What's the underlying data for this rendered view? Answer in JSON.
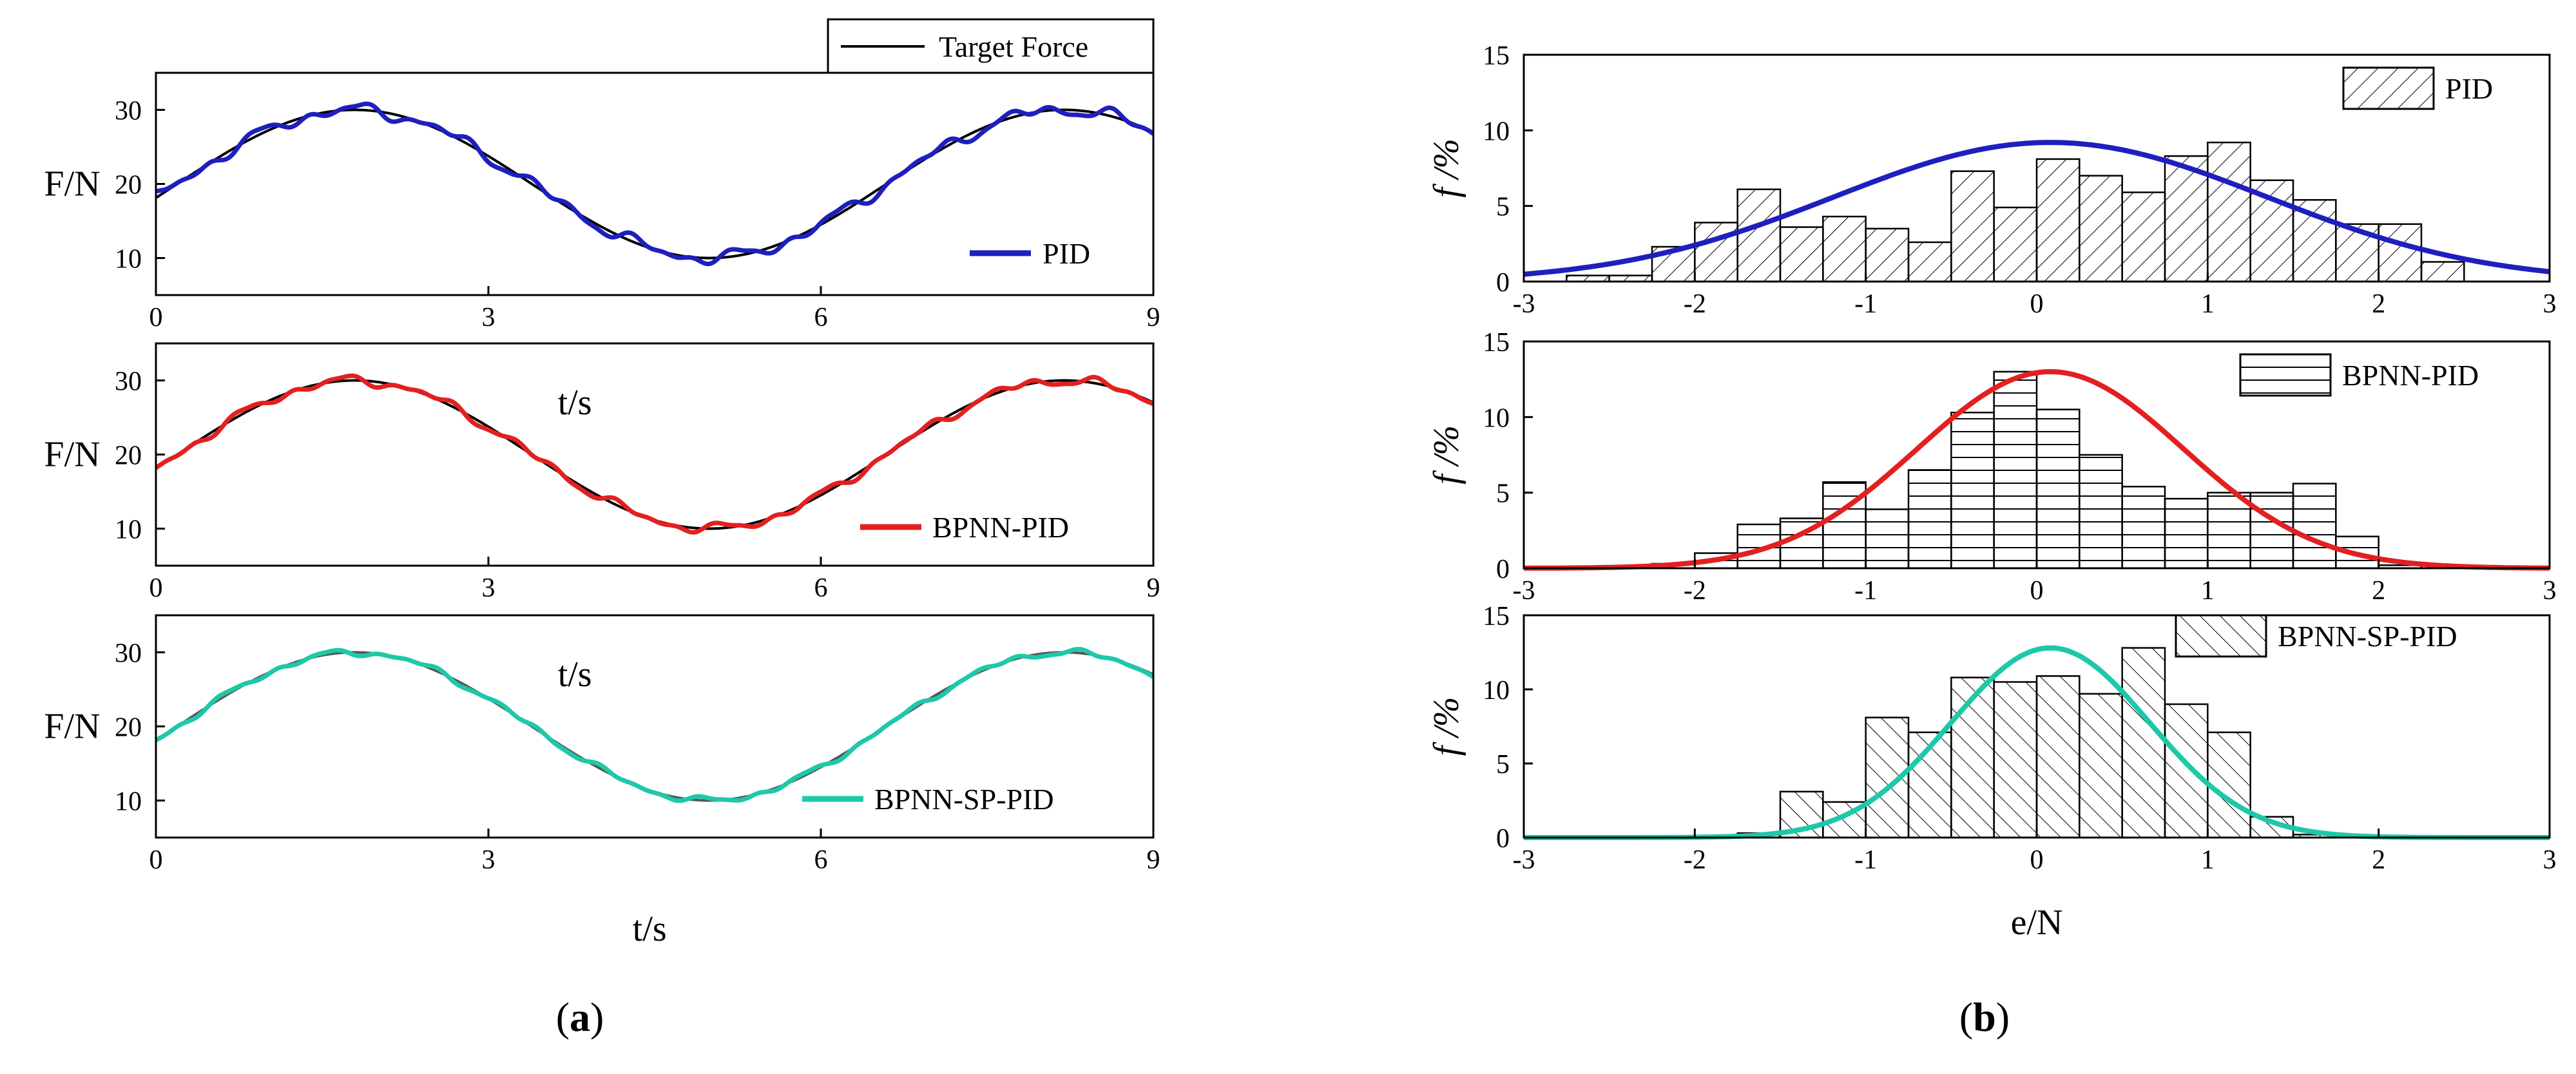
{
  "figure": {
    "caption_a_open": "(",
    "caption_a_letter": "a",
    "caption_a_close": ")",
    "caption_b_open": "(",
    "caption_b_letter": "b",
    "caption_b_close": ")"
  },
  "chart_data": [
    {
      "id": "a1",
      "type": "line",
      "title": "",
      "xlabel": "t/s",
      "ylabel": "F/N",
      "xlim": [
        0,
        9
      ],
      "ylim": [
        5,
        35
      ],
      "xticks": [
        0,
        3,
        6,
        9
      ],
      "yticks": [
        10,
        20,
        30
      ],
      "legend": [
        {
          "label": "Target Force",
          "color": "#000000"
        },
        {
          "label": "PID",
          "color": "#1f1fbf"
        }
      ],
      "series": [
        {
          "name": "Target Force",
          "color": "#000000",
          "formula": "20 + 10*sin(2*pi*(t/6.4) - 0.06*pi)"
        },
        {
          "name": "PID",
          "color": "#1f1fbf",
          "deviation_amplitude_N": 1.2
        }
      ]
    },
    {
      "id": "a2",
      "type": "line",
      "xlabel": "t/s",
      "ylabel": "F/N",
      "xlim": [
        0,
        9
      ],
      "ylim": [
        5,
        35
      ],
      "xticks": [
        0,
        3,
        6,
        9
      ],
      "yticks": [
        10,
        20,
        30
      ],
      "legend": [
        {
          "label": "BPNN-PID",
          "color": "#e32020"
        }
      ],
      "series": [
        {
          "name": "Target Force",
          "color": "#000000"
        },
        {
          "name": "BPNN-PID",
          "color": "#e32020",
          "deviation_amplitude_N": 0.9
        }
      ]
    },
    {
      "id": "a3",
      "type": "line",
      "xlabel": "t/s",
      "ylabel": "F/N",
      "xlim": [
        0,
        9
      ],
      "ylim": [
        5,
        35
      ],
      "xticks": [
        0,
        3,
        6,
        9
      ],
      "yticks": [
        10,
        20,
        30
      ],
      "legend": [
        {
          "label": "BPNN-SP-PID",
          "color": "#1ec8a8"
        }
      ],
      "series": [
        {
          "name": "Target Force",
          "color": "#555555"
        },
        {
          "name": "BPNN-SP-PID",
          "color": "#1ec8a8",
          "deviation_amplitude_N": 0.6
        }
      ]
    },
    {
      "id": "b1",
      "type": "bar",
      "xlabel": "e/N",
      "ylabel": "f /%",
      "xlim": [
        -3,
        3
      ],
      "ylim": [
        0,
        15
      ],
      "xticks": [
        -3,
        -2,
        -1,
        0,
        1,
        2,
        3
      ],
      "yticks": [
        0,
        5,
        10,
        15
      ],
      "bin_start": -2.75,
      "bin_width": 0.25,
      "values": [
        0.4,
        0.4,
        2.3,
        3.9,
        6.1,
        3.6,
        4.3,
        3.5,
        2.6,
        7.3,
        4.9,
        8.1,
        7.0,
        5.9,
        8.3,
        9.2,
        6.7,
        5.4,
        3.8,
        3.8,
        1.3
      ],
      "hatch": "diagonal-right",
      "fit": {
        "type": "normal",
        "mean": 0.08,
        "peak": 9.2,
        "sigma": 1.27,
        "color": "#1f1fbf"
      },
      "legend": [
        {
          "label": "PID"
        }
      ]
    },
    {
      "id": "b2",
      "type": "bar",
      "xlabel": "e/N",
      "ylabel": "f /%",
      "xlim": [
        -3,
        3
      ],
      "ylim": [
        0,
        15
      ],
      "xticks": [
        -3,
        -2,
        -1,
        0,
        1,
        2,
        3
      ],
      "yticks": [
        0,
        5,
        10,
        15
      ],
      "bin_start": -2.25,
      "bin_width": 0.25,
      "values": [
        0.3,
        1.0,
        2.9,
        3.3,
        5.7,
        3.9,
        6.5,
        10.3,
        13.0,
        10.5,
        7.5,
        5.4,
        4.6,
        5.0,
        5.0,
        5.6,
        2.1,
        0.2
      ],
      "hatch": "horizontal",
      "fit": {
        "type": "normal",
        "mean": 0.08,
        "peak": 13.0,
        "sigma": 0.78,
        "color": "#e32020"
      },
      "legend": [
        {
          "label": "BPNN-PID"
        }
      ]
    },
    {
      "id": "b3",
      "type": "bar",
      "xlabel": "e/N",
      "ylabel": "f /%",
      "xlim": [
        -3,
        3
      ],
      "ylim": [
        0,
        15
      ],
      "xticks": [
        -3,
        -2,
        -1,
        0,
        1,
        2,
        3
      ],
      "yticks": [
        0,
        5,
        10,
        15
      ],
      "bin_start": -1.75,
      "bin_width": 0.25,
      "values": [
        0.3,
        3.1,
        2.4,
        8.1,
        7.1,
        10.8,
        10.5,
        10.9,
        9.7,
        12.8,
        9.0,
        7.1,
        1.4,
        0.2
      ],
      "hatch": "diagonal-left",
      "fit": {
        "type": "normal",
        "mean": 0.08,
        "peak": 12.8,
        "sigma": 0.58,
        "color": "#1ec8a8"
      },
      "legend": [
        {
          "label": "BPNN-SP-PID"
        }
      ]
    }
  ]
}
